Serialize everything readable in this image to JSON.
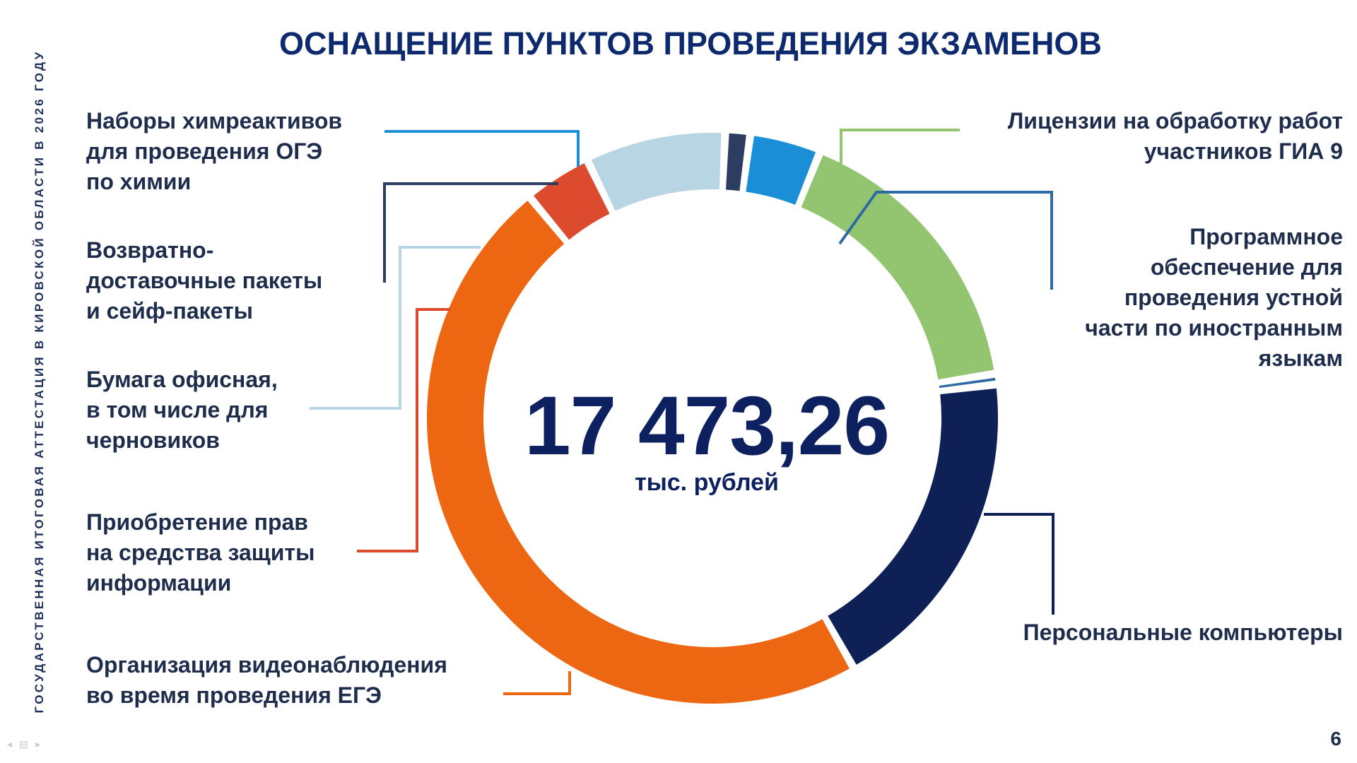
{
  "slide": {
    "vertical_caption": "ГОСУДАРСТВЕННАЯ ИТОГОВАЯ АТТЕСТАЦИЯ В КИРОВСКОЙ ОБЛАСТИ В 2026 ГОДУ",
    "title": "ОСНАЩЕНИЕ ПУНКТОВ ПРОВЕДЕНИЯ ЭКЗАМЕНОВ",
    "page_number": "6",
    "nav_icons": [
      "arrow-left-icon",
      "menu-icon",
      "arrow-right-icon"
    ]
  },
  "chart_data": {
    "type": "pie",
    "variant": "donut",
    "center_value": "17 473,26",
    "center_unit": "тыс. рублей",
    "grid": false,
    "legend": "callout labels around the donut",
    "segments": [
      {
        "key": "licenses",
        "label_lines": [
          "Лицензии на обработку работ",
          "участников ГИА 9"
        ],
        "share": 0.164,
        "color": "#93c46f"
      },
      {
        "key": "software",
        "label_lines": [
          "Программное",
          "обеспечение для",
          "проведения устной",
          "части по иностранным",
          "языкам"
        ],
        "share": 0.006,
        "color": "#2e6aa4"
      },
      {
        "key": "computers",
        "label_lines": [
          "Персональные компьютеры"
        ],
        "share": 0.187,
        "color": "#0e2056"
      },
      {
        "key": "video",
        "label_lines": [
          "Организация видеонаблюдения",
          "во время проведения ЕГЭ"
        ],
        "share": 0.472,
        "color": "#ed6713"
      },
      {
        "key": "protection",
        "label_lines": [
          "Приобретение прав",
          "на средства защиты",
          "информации"
        ],
        "share": 0.038,
        "color": "#dd4b2f"
      },
      {
        "key": "paper",
        "label_lines": [
          "Бумага офисная,",
          "в том числе для",
          "черновиков"
        ],
        "share": 0.079,
        "color": "#b7d5e3"
      },
      {
        "key": "packages",
        "label_lines": [
          "Возвратно-",
          "доставочные пакеты",
          "и сейф-пакеты"
        ],
        "share": 0.014,
        "color": "#2c3d61"
      },
      {
        "key": "reagents",
        "label_lines": [
          "Наборы химреактивов",
          "для проведения ОГЭ",
          "по химии"
        ],
        "share": 0.04,
        "color": "#1a8ed6"
      }
    ]
  }
}
